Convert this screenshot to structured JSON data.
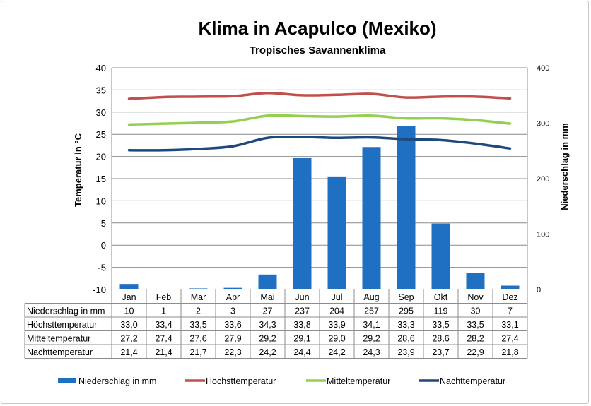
{
  "chart_data": {
    "type": "bar+line",
    "title": "Klima in Acapulco (Mexiko)",
    "subtitle": "Tropisches Savannenklima",
    "categories": [
      "Jan",
      "Feb",
      "Mar",
      "Apr",
      "Mai",
      "Jun",
      "Jul",
      "Aug",
      "Sep",
      "Okt",
      "Nov",
      "Dez"
    ],
    "y_left": {
      "label": "Temperatur in °C",
      "min": -10,
      "max": 40,
      "step": 5
    },
    "y_right": {
      "label": "Niederschlag in mm",
      "min": 0,
      "max": 400,
      "step": 100
    },
    "bar_series": {
      "name": "Niederschlag in mm",
      "color": "#1f6fc2",
      "axis": "right",
      "values": [
        10,
        1,
        2,
        3,
        27,
        237,
        204,
        257,
        295,
        119,
        30,
        7
      ]
    },
    "line_series": [
      {
        "name": "Höchsttemperatur",
        "color": "#c0504d",
        "axis": "left",
        "values": [
          33.0,
          33.4,
          33.5,
          33.6,
          34.3,
          33.8,
          33.9,
          34.1,
          33.3,
          33.5,
          33.5,
          33.1
        ]
      },
      {
        "name": "Mitteltemperatur",
        "color": "#92d050",
        "axis": "left",
        "values": [
          27.2,
          27.4,
          27.6,
          27.9,
          29.2,
          29.1,
          29.0,
          29.2,
          28.6,
          28.6,
          28.2,
          27.4
        ]
      },
      {
        "name": "Nachttemperatur",
        "color": "#1f497d",
        "axis": "left",
        "values": [
          21.4,
          21.4,
          21.7,
          22.3,
          24.2,
          24.4,
          24.2,
          24.3,
          23.9,
          23.7,
          22.9,
          21.8
        ]
      }
    ],
    "table_rows": [
      {
        "label": "Niederschlag in mm",
        "cells": [
          "10",
          "1",
          "2",
          "3",
          "27",
          "237",
          "204",
          "257",
          "295",
          "119",
          "30",
          "7"
        ]
      },
      {
        "label": "Höchsttemperatur",
        "cells": [
          "33,0",
          "33,4",
          "33,5",
          "33,6",
          "34,3",
          "33,8",
          "33,9",
          "34,1",
          "33,3",
          "33,5",
          "33,5",
          "33,1"
        ]
      },
      {
        "label": "Mitteltemperatur",
        "cells": [
          "27,2",
          "27,4",
          "27,6",
          "27,9",
          "29,2",
          "29,1",
          "29,0",
          "29,2",
          "28,6",
          "28,6",
          "28,2",
          "27,4"
        ]
      },
      {
        "label": "Nachttemperatur",
        "cells": [
          "21,4",
          "21,4",
          "21,7",
          "22,3",
          "24,2",
          "24,4",
          "24,2",
          "24,3",
          "23,9",
          "23,7",
          "22,9",
          "21,8"
        ]
      }
    ],
    "grid": true,
    "legend_position": "bottom"
  }
}
